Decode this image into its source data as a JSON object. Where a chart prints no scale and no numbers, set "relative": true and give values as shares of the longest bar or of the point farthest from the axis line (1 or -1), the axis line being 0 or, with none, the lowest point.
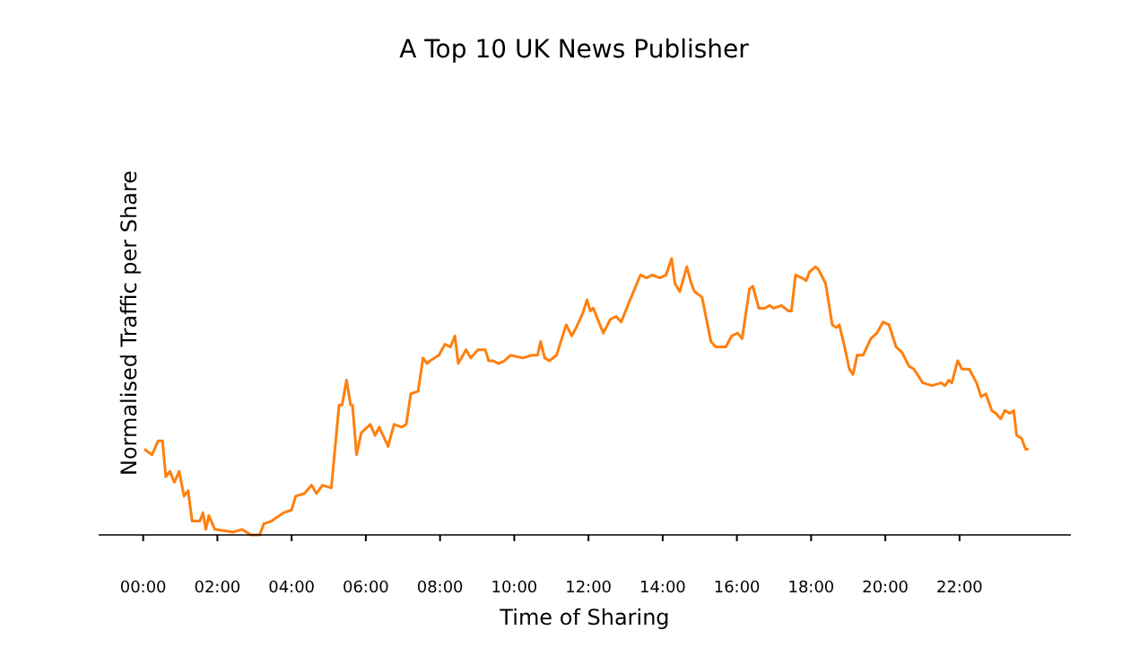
{
  "chart_data": {
    "type": "line",
    "title": "A Top 10 UK News Publisher",
    "xlabel": "Time of Sharing",
    "ylabel": "Normalised Traffic per Share",
    "relative": true,
    "color": "#ff7f0e",
    "xlim": [
      -1.2,
      25
    ],
    "xticks": [
      {
        "value": 0,
        "label": "00:00"
      },
      {
        "value": 2,
        "label": "02:00"
      },
      {
        "value": 4,
        "label": "04:00"
      },
      {
        "value": 6,
        "label": "06:00"
      },
      {
        "value": 8,
        "label": "08:00"
      },
      {
        "value": 10,
        "label": "10:00"
      },
      {
        "value": 12,
        "label": "12:00"
      },
      {
        "value": 14,
        "label": "14:00"
      },
      {
        "value": 16,
        "label": "16:00"
      },
      {
        "value": 18,
        "label": "18:00"
      },
      {
        "value": 20,
        "label": "20:00"
      },
      {
        "value": 22,
        "label": "22:00"
      }
    ],
    "x": [
      0.03,
      0.24,
      0.4,
      0.52,
      0.61,
      0.72,
      0.84,
      0.97,
      1.1,
      1.21,
      1.32,
      1.53,
      1.61,
      1.69,
      1.77,
      1.93,
      2.42,
      2.66,
      2.9,
      3.14,
      3.25,
      3.46,
      3.78,
      4.0,
      4.11,
      4.35,
      4.54,
      4.67,
      4.83,
      5.07,
      5.28,
      5.36,
      5.48,
      5.59,
      5.64,
      5.75,
      5.88,
      6.12,
      6.25,
      6.36,
      6.6,
      6.76,
      6.97,
      7.09,
      7.21,
      7.41,
      7.54,
      7.65,
      7.73,
      7.97,
      8.13,
      8.28,
      8.4,
      8.49,
      8.7,
      8.83,
      9.02,
      9.22,
      9.31,
      9.42,
      9.58,
      9.74,
      9.9,
      10.23,
      10.47,
      10.63,
      10.71,
      10.82,
      10.95,
      11.14,
      11.4,
      11.55,
      11.67,
      11.84,
      11.96,
      12.05,
      12.13,
      12.4,
      12.59,
      12.75,
      12.88,
      13.09,
      13.4,
      13.56,
      13.72,
      13.93,
      14.09,
      14.24,
      14.33,
      14.46,
      14.65,
      14.77,
      14.86,
      15.06,
      15.3,
      15.43,
      15.7,
      15.86,
      16.02,
      16.14,
      16.34,
      16.43,
      16.59,
      16.75,
      16.88,
      16.99,
      17.2,
      17.39,
      17.47,
      17.58,
      17.75,
      17.87,
      17.95,
      18.12,
      18.2,
      18.39,
      18.57,
      18.68,
      18.76,
      18.92,
      19.03,
      19.13,
      19.24,
      19.4,
      19.61,
      19.77,
      19.94,
      20.1,
      20.29,
      20.45,
      20.64,
      20.77,
      21.01,
      21.26,
      21.5,
      21.61,
      21.71,
      21.79,
      21.95,
      22.06,
      22.26,
      22.46,
      22.58,
      22.71,
      22.87,
      22.98,
      23.11,
      23.22,
      23.35,
      23.46,
      23.54,
      23.67,
      23.78,
      23.86
    ],
    "values": [
      0.31,
      0.29,
      0.34,
      0.34,
      0.21,
      0.23,
      0.19,
      0.23,
      0.14,
      0.16,
      0.05,
      0.05,
      0.08,
      0.02,
      0.07,
      0.02,
      0.01,
      0.02,
      0.0,
      0.0,
      0.04,
      0.05,
      0.08,
      0.09,
      0.14,
      0.15,
      0.18,
      0.15,
      0.18,
      0.17,
      0.47,
      0.47,
      0.56,
      0.47,
      0.47,
      0.29,
      0.37,
      0.4,
      0.36,
      0.39,
      0.32,
      0.4,
      0.39,
      0.4,
      0.51,
      0.52,
      0.64,
      0.62,
      0.63,
      0.65,
      0.69,
      0.68,
      0.72,
      0.62,
      0.67,
      0.64,
      0.67,
      0.67,
      0.63,
      0.63,
      0.62,
      0.63,
      0.65,
      0.64,
      0.65,
      0.65,
      0.7,
      0.64,
      0.63,
      0.65,
      0.76,
      0.72,
      0.75,
      0.8,
      0.85,
      0.81,
      0.82,
      0.73,
      0.78,
      0.79,
      0.77,
      0.84,
      0.94,
      0.93,
      0.94,
      0.93,
      0.94,
      1.0,
      0.91,
      0.88,
      0.97,
      0.91,
      0.88,
      0.86,
      0.7,
      0.68,
      0.68,
      0.72,
      0.73,
      0.71,
      0.89,
      0.9,
      0.82,
      0.82,
      0.83,
      0.82,
      0.83,
      0.81,
      0.81,
      0.94,
      0.93,
      0.92,
      0.95,
      0.97,
      0.96,
      0.91,
      0.76,
      0.75,
      0.76,
      0.67,
      0.6,
      0.58,
      0.65,
      0.65,
      0.71,
      0.73,
      0.77,
      0.76,
      0.68,
      0.66,
      0.61,
      0.6,
      0.55,
      0.54,
      0.55,
      0.54,
      0.56,
      0.55,
      0.63,
      0.6,
      0.6,
      0.55,
      0.5,
      0.51,
      0.45,
      0.44,
      0.42,
      0.45,
      0.44,
      0.45,
      0.36,
      0.35,
      0.31,
      0.31
    ]
  }
}
